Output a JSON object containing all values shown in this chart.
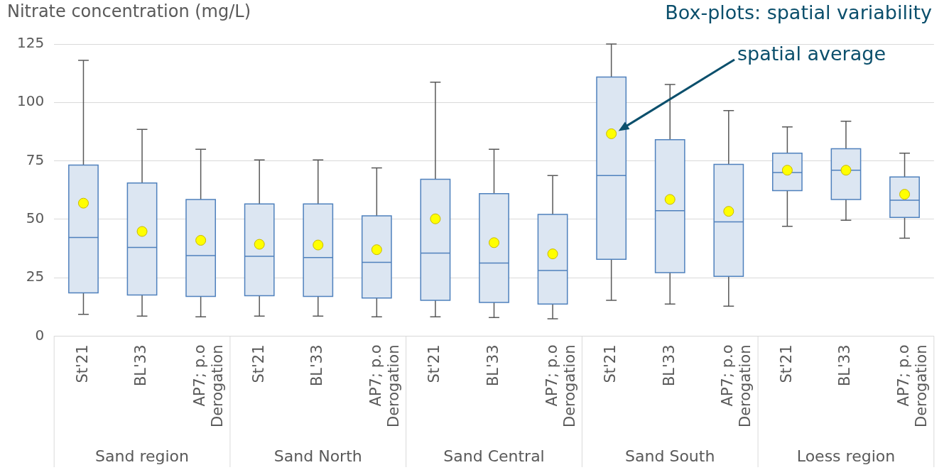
{
  "chart_data": {
    "type": "box",
    "ylabel": "Nitrate concentration (mg/L)",
    "categories": [
      "St'21",
      "BL'33",
      "AP7; p.o Derogation",
      "St'21",
      "BL'33",
      "AP7; p.o Derogation",
      "St'21",
      "BL'33",
      "AP7; p.o Derogation",
      "St'21",
      "BL'33",
      "AP7; p.o Derogation",
      "St'21",
      "BL'33",
      "AP7; p.o Derogation"
    ],
    "color": "#dce6f2",
    "boxes": [
      {
        "low": 9.3,
        "q1": 18.5,
        "median": 42.2,
        "q3": 73.2,
        "high": 118,
        "mean": 56.9
      },
      {
        "low": 8.6,
        "q1": 17.6,
        "median": 38,
        "q3": 65.5,
        "high": 88.5,
        "mean": 44.8
      },
      {
        "low": 8.3,
        "q1": 17,
        "median": 34.5,
        "q3": 58.5,
        "high": 80,
        "mean": 41
      },
      {
        "low": 8.6,
        "q1": 17.3,
        "median": 34.2,
        "q3": 56.6,
        "high": 75.4,
        "mean": 39.3
      },
      {
        "low": 8.6,
        "q1": 17,
        "median": 33.6,
        "q3": 56.6,
        "high": 75.4,
        "mean": 39
      },
      {
        "low": 8.3,
        "q1": 16.3,
        "median": 31.6,
        "q3": 51.5,
        "high": 72,
        "mean": 37
      },
      {
        "low": 8.3,
        "q1": 15.3,
        "median": 35.5,
        "q3": 67.1,
        "high": 108.7,
        "mean": 50.2
      },
      {
        "low": 8,
        "q1": 14.4,
        "median": 31.3,
        "q3": 61,
        "high": 80,
        "mean": 40
      },
      {
        "low": 7.4,
        "q1": 13.7,
        "median": 28.1,
        "q3": 52.1,
        "high": 68.7,
        "mean": 35.2
      },
      {
        "low": 15.3,
        "q1": 32.9,
        "median": 68.7,
        "q3": 110.9,
        "high": 125,
        "mean": 86.6
      },
      {
        "low": 13.7,
        "q1": 27.2,
        "median": 53.7,
        "q3": 84.1,
        "high": 107.7,
        "mean": 58.5
      },
      {
        "low": 12.8,
        "q1": 25.6,
        "median": 48.9,
        "q3": 73.5,
        "high": 96.5,
        "mean": 53.4
      },
      {
        "low": 47,
        "q1": 62.3,
        "median": 70,
        "q3": 78.3,
        "high": 89.5,
        "mean": 71
      },
      {
        "low": 49.6,
        "q1": 58.5,
        "median": 71,
        "q3": 80.2,
        "high": 92,
        "mean": 71
      },
      {
        "low": 41.9,
        "q1": 50.8,
        "median": 58.2,
        "q3": 68.1,
        "high": 78.3,
        "mean": 60.7
      }
    ],
    "ylim": [
      0,
      125
    ],
    "yticks": [
      0,
      25,
      50,
      75,
      100,
      125
    ],
    "grid": "y",
    "annotations": [
      "Box-plots: spatial variability",
      "spatial average",
      "Sand region",
      "Sand North",
      "Sand Central",
      "Sand South",
      "Loess region"
    ]
  }
}
